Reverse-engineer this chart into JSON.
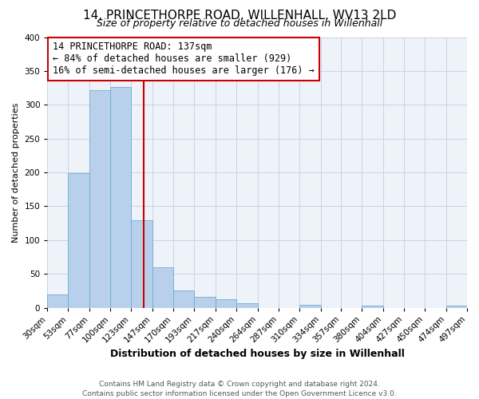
{
  "title": "14, PRINCETHORPE ROAD, WILLENHALL, WV13 2LD",
  "subtitle": "Size of property relative to detached houses in Willenhall",
  "xlabel": "Distribution of detached houses by size in Willenhall",
  "ylabel": "Number of detached properties",
  "footer_line1": "Contains HM Land Registry data © Crown copyright and database right 2024.",
  "footer_line2": "Contains public sector information licensed under the Open Government Licence v3.0.",
  "annotation_line1": "14 PRINCETHORPE ROAD: 137sqm",
  "annotation_line2": "← 84% of detached houses are smaller (929)",
  "annotation_line3": "16% of semi-detached houses are larger (176) →",
  "bar_edges": [
    30,
    53,
    77,
    100,
    123,
    147,
    170,
    193,
    217,
    240,
    264,
    287,
    310,
    334,
    357,
    380,
    404,
    427,
    450,
    474,
    497
  ],
  "bar_heights": [
    19,
    199,
    321,
    326,
    129,
    60,
    26,
    16,
    13,
    6,
    0,
    0,
    4,
    0,
    0,
    3,
    0,
    0,
    0,
    3
  ],
  "bar_color": "#b8d0eb",
  "bar_edge_color": "#6aaed6",
  "property_size": 137,
  "vline_color": "#cc0000",
  "box_color": "#cc0000",
  "ylim": [
    0,
    400
  ],
  "yticks": [
    0,
    50,
    100,
    150,
    200,
    250,
    300,
    350,
    400
  ],
  "background_color": "#eef2f9",
  "grid_color": "#c5cfe0",
  "title_fontsize": 11,
  "subtitle_fontsize": 9,
  "xlabel_fontsize": 9,
  "ylabel_fontsize": 8,
  "tick_fontsize": 7.5,
  "annotation_fontsize": 8.5,
  "footer_fontsize": 6.5
}
